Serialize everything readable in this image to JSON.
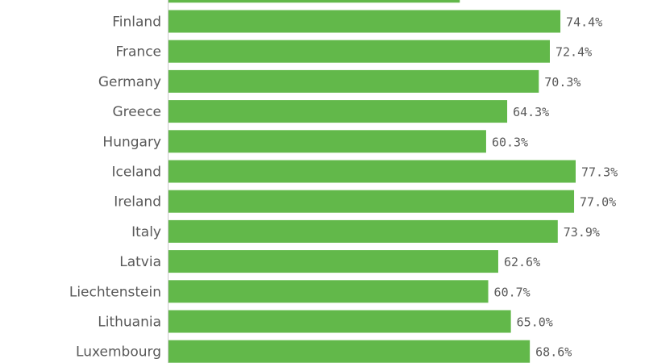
{
  "chart_data": {
    "type": "bar",
    "orientation": "horizontal",
    "partial_top_bar": {
      "value": 55.3
    },
    "categories": [
      "Finland",
      "France",
      "Germany",
      "Greece",
      "Hungary",
      "Iceland",
      "Ireland",
      "Italy",
      "Latvia",
      "Liechtenstein",
      "Lithuania",
      "Luxembourg"
    ],
    "values": [
      74.4,
      72.4,
      70.3,
      64.3,
      60.3,
      77.3,
      77.0,
      73.9,
      62.6,
      60.7,
      65.0,
      68.6
    ],
    "value_labels": [
      "74.4%",
      "72.4%",
      "70.3%",
      "64.3%",
      "60.3%",
      "77.3%",
      "77.0%",
      "73.9%",
      "62.6%",
      "60.7%",
      "65.0%",
      "68.6%"
    ],
    "bar_color": "#62b84a",
    "axis_color": "#cccccc",
    "xlim": [
      0,
      77.3
    ],
    "grid": false
  }
}
